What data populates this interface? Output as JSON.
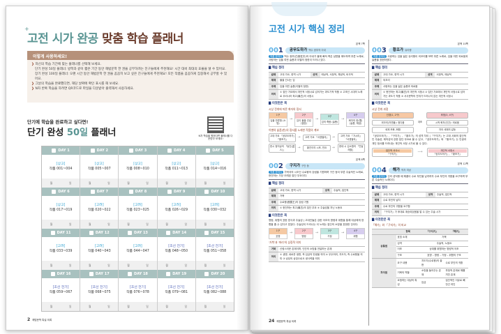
{
  "left_page": {
    "title_a": "고전 시가 완공",
    "title_b": "맞춤 학습 플래너",
    "howto": {
      "header": "이렇게 사용하세요!",
      "lines": [
        {
          "bullet": true,
          "text": "자신의 학습 기간에 맞는 플래너를 선택해 보세요."
        },
        {
          "bullet": false,
          "text": "단기 완성 50일 플래너: 방학과 같이 짧은 기간 동안 해법문학 한 권을 공부하려는 친구들에게 추천해요! 시간 대비 최대의 효율을 낼 수 있어요."
        },
        {
          "bullet": false,
          "text": "장기 완성 100일 플래너: 오랜 시간 동안 해법문학 한 권을 꼼꼼히 보고 싶은 친구들에게 추천해요! 모든 작품을 꼼꼼하게 집중해서 공부할 수 있어요."
        },
        {
          "bullet": true,
          "text": "그날의 학습을 완료했다면, 해당 날짜에 확인 표시를 해 보세요."
        },
        {
          "bullet": true,
          "text": "N차 반복 학습을 하려면 QR코드로 파일을 다운받아 출력해서 사용하세요."
        }
      ]
    },
    "planner_subtitle": "단기에 학습을 완료하고 싶다면!",
    "planner_title_a": "단기 완성",
    "planner_title_b": "50일",
    "planner_title_c": "플래너",
    "qr_caption": "N차 학습을 원한다면 플래너를 다운받아 보세요!",
    "month_label": "월",
    "day_label": "일",
    "days": [
      {
        "label": "DAY 1",
        "cat": "[상고]",
        "range": "작품 001~004"
      },
      {
        "label": "DAY 2",
        "cat": "[상고]",
        "range": "작품 005~007"
      },
      {
        "label": "DAY 3",
        "cat": "[상고]",
        "range": "작품 008~010"
      },
      {
        "label": "DAY 4",
        "cat": "[상고]",
        "range": "작품 011~013"
      },
      {
        "label": "DAY 5",
        "cat": "[상고]",
        "range": "작품 014~016"
      },
      {
        "label": "DAY 6",
        "cat": "[상고]",
        "range": "작품 017~019"
      },
      {
        "label": "DAY 7",
        "cat": "[고려]",
        "range": "작품 020~022"
      },
      {
        "label": "DAY 8",
        "cat": "[고려]",
        "range": "작품 023~025"
      },
      {
        "label": "DAY 9",
        "cat": "[고려]",
        "range": "작품 026~029"
      },
      {
        "label": "DAY 10",
        "cat": "[고려]",
        "range": "작품 030~032"
      },
      {
        "label": "DAY 11",
        "cat": "[고려]",
        "range": "작품 033~039"
      },
      {
        "label": "DAY 12",
        "cat": "[고려]",
        "range": "작품 040~043"
      },
      {
        "label": "DAY 13",
        "cat": "[고려]",
        "range": "작품 044~047"
      },
      {
        "label": "DAY 14",
        "cat": "[조선 전기]",
        "range": "작품 048~050"
      },
      {
        "label": "DAY 15",
        "cat": "[조선 전기]",
        "range": "작품 051~058"
      },
      {
        "label": "DAY 16",
        "cat": "[조선 전기]",
        "range": "작품 059~067"
      },
      {
        "label": "DAY 17",
        "cat": "[조선 전기]",
        "range": "작품 068~075"
      },
      {
        "label": "DAY 18",
        "cat": "[조선 전기]",
        "range": "작품 076~078"
      },
      {
        "label": "DAY 19",
        "cat": "[조선 전기]",
        "range": "작품 079~081"
      },
      {
        "label": "DAY 20",
        "cat": "[조선 전기]",
        "range": "작품 082~088"
      }
    ],
    "page_number": "2",
    "footer_text": "해법문학 특설 외록"
  },
  "right_page": {
    "title": "고전 시가 핵심 정리",
    "page_number": "24",
    "footer_text": "해법문학 특설 외록",
    "core_label": "핵심 정리",
    "must_label": "이것만은 꼭",
    "tag_label": "작품 한마디",
    "entries": [
      {
        "num_a": "00",
        "num_b": "1",
        "title": "공무도하가",
        "author": "백수 광부의 아내",
        "ref": "본책 7쪽",
        "intro": "백수 광부(白首狂夫)의 아내가 물에 빠져 죽은 남편을 애도하며 부른 노래로, 사랑하는 임을 여읜 슬픔과 이별의 정한이 드러나 있다.",
        "info": [
          [
            "갈래",
            "고대 가요, 한역 시가",
            "성격",
            "애상적, 서정적, 체념적, 비극적"
          ],
          [
            "제재",
            "물을 건너는 임"
          ],
          [
            "주제",
            "임을 여읜 슬픔(이별의 정한)"
          ],
          [
            "의의",
            "① 집단 가요에서 개인적 서정시로 넘어가는 과도기적 작품 ② 고조선 시대의 노래로 우리나라 최고(最古)의 서정시"
          ]
        ],
        "sub1": "시상 전개에 따른 화자의 정서",
        "steps": [
          {
            "h": "1구",
            "b": "임을 만류함 (소망)"
          },
          {
            "h": "2구",
            "b": "임이 물을 건넘 (절망)"
          },
          {
            "h": "3구",
            "b": "임의 죽음 (슬픔)"
          },
          {
            "h": "4구",
            "b": "화자의 한(恨) (슬픔, 체념)"
          }
        ],
        "sub2": "이별의 슬픔(한)의 정서를 노래한 작품의 계보",
        "flow": [
          "고대 가요 「공무도하가」「황조가」",
          "고려 가요 「서경별곡」",
          "고려 가요 「가시리」「서경별곡」",
          "한시 정지상의 「송인(送人)」",
          "황진이의 시조, 민요",
          "현대 시 김소월의 「진달래꽃」"
        ]
      },
      {
        "num_a": "00",
        "num_b": "2",
        "title": "구지가",
        "author": "구간 등",
        "ref": "본책 8쪽",
        "intro": "가락국의 시조인 수로왕의 강림을 기원하며 구간 등이 부른 주술적인 노래로, 현전하는 가장 오래된 집단 무요이다.",
        "info": [
          [
            "갈래",
            "고대 가요, 한역 시가",
            "성격",
            "주술적, 집단적"
          ],
          [
            "제재",
            "거북"
          ],
          [
            "주제",
            "수로왕(首露王)의 강림 기원"
          ],
          [
            "의의",
            "① 현전하는 최고(最古)의 집단 무요 ② 주술성을 지닌 노동요"
          ]
        ],
        "para": "명령, 위협의 표현 방식과 주술성 | 고대인들은 강한 어조의 명령과 위협을 통해 대상에게 영향을 줄 수 있다고 믿었다. 주술성이 드러나는 이 노래는 집단의 소망을 표현한 것이다.",
        "steps": [
          {
            "h": "1구",
            "b": "호명"
          },
          {
            "h": "2구",
            "b": "명령"
          },
          {
            "h": "3구",
            "b": "가정"
          },
          {
            "h": "4구",
            "b": "위협"
          }
        ],
        "sub2": "'거북'과 '머리'의 상징적 의미",
        "symbols": [
          [
            "거북",
            "신령스러운 존재이며, 인간의 소망을 전달하는 존재"
          ],
          [
            "머리",
            "① 생명, 새로운 생명, 즉 임금의 탄생을 의미 ② 우두머리, 지도자, 즉 수로왕을 의미 ③ 남성의 상징으로서 생식력을 의미"
          ]
        ]
      },
      {
        "num_a": "00",
        "num_b": "3",
        "title": "황조가",
        "author": "유리왕",
        "ref": "본책 10쪽",
        "intro": "사랑하는 임을 잃은 유리왕이 꾀꼬리를 보며 부른 노래로, 임을 여읜 외로움과 슬픔을 표현하였다.",
        "info": [
          [
            "갈래",
            "고대 가요, 한역 시가",
            "성격",
            "서정적, 애상적"
          ],
          [
            "제재",
            "꾀꼬리"
          ],
          [
            "주제",
            "사랑하는 임을 잃은 슬픔과 외로움"
          ],
          [
            "의의",
            "① 현전하는 최고(最古)의 개인적 서정시 ② 집단 가요에서 개인적 서정시로 넘어가는 과도기 작품 ③ 서사문학의 전개가 드러나지 않는 개인적 서정시"
          ]
        ],
        "sub1": "시상 전개 과정",
        "tree": {
          "a": "선경(1, 2구)",
          "b": "후정(3, 4구)",
          "a1": "꾀꼬리(자연물): 정다움",
          "b1": "시적 화자(인간): 외로움",
          "rel": "대조",
          "a2": "세계 조화, 화합",
          "b2": "자아 세계의 갈등"
        },
        "para": "「공무도하가」, 「구지가」, 「황조가」의 성격 차이 | 「구지가」는 고대 사회의 집단적인 주술성, 제의성이 강한 집단 무요로 볼 수 있고, 「공무도하가」와 「황조가」는 인생과 개인 정서를 드러내는 개인적 서정 시가로 볼 수 있다.",
        "cmp_a_h": "집단적 서사시",
        "cmp_a_b": "「구지가」",
        "cmp_b_h": "개인적 서정시",
        "cmp_b_b": "「공무도하가」, 「황조가」"
      },
      {
        "num_a": "00",
        "num_b": "4",
        "title": "해가",
        "author": "작자 미상",
        "ref": "본책 12쪽",
        "intro": "신라 성덕왕 때 해룡이 수로 부인을 납치하자 수로 부인의 귀환을 요구하며 부른 주술적인 노래이다.",
        "info": [
          [
            "갈래",
            "고대 가요, 한역 시가",
            "성격",
            "주술적, 집단적"
          ],
          [
            "제재",
            "수로 부인의 납치"
          ],
          [
            "주제",
            "수로 부인의 귀환을 요구함"
          ],
          [
            "의의",
            "「구지가」가 후대로 계승되었음을 알 수 있는 주술 시가"
          ]
        ],
        "sub1": "「해가」와 「구지가」의 비교",
        "cmp_head": [
          "항목",
          "「구지가」",
          "「해가」"
        ],
        "common_label": "공통점",
        "common": [
          [
            "호칭 소재",
            "거북"
          ],
          [
            "성격",
            "주술적, 노동요"
          ],
          [
            "어조",
            "상대를 위협하는 명령적 어조"
          ],
          [
            "구조",
            "호명 – 명령 – 가정 – 위협의 구조"
          ]
        ],
        "diff_label": "차이점",
        "diff": [
          [
            "요구 내용",
            "지도자(수로왕)의 출현",
            "수로 부인의 귀환"
          ],
          [
            "거북의 역할",
            "소망을 들어주는 존재",
            "부정적 존재로 해를 끼친 존재"
          ],
          [
            "요청하는 대상의 특성",
            "임금",
            "집단적인 이유로 빼앗긴 여인"
          ]
        ]
      }
    ]
  },
  "colors": {
    "teal": "#5a9593",
    "brown": "#6a3b2b",
    "grid_header": "#a8c1bf",
    "blue_title": "#2a8fd0",
    "pill": "#c8e6f7"
  }
}
